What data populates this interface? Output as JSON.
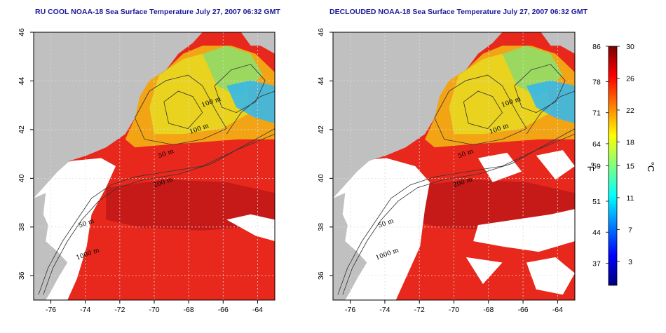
{
  "panels": [
    {
      "id": "left",
      "title": "RU COOL NOAA-18 Sea Surface Temperature July 27, 2007 06:32 GMT",
      "decloud": false
    },
    {
      "id": "right",
      "title": "DECLOUDED NOAA-18 Sea Surface Temperature July 27, 2007 06:32 GMT",
      "decloud": true
    }
  ],
  "map": {
    "lon_range": [
      -77,
      -63
    ],
    "lat_range": [
      35,
      46
    ],
    "x_ticks": [
      "-76",
      "-74",
      "-72",
      "-70",
      "-68",
      "-66",
      "-64"
    ],
    "y_ticks": [
      "36",
      "38",
      "40",
      "42",
      "44",
      "46"
    ],
    "contour_labels": [
      "100 m",
      "100 m",
      "50 m",
      "200 m",
      "50 m",
      "1000 m"
    ]
  },
  "colorbar": {
    "fahrenheit_ticks": [
      "86",
      "78",
      "71",
      "64",
      "59",
      "51",
      "44",
      "37"
    ],
    "celsius_ticks": [
      "30",
      "26",
      "22",
      "18",
      "15",
      "11",
      "7",
      "3"
    ],
    "fahrenheit_unit": "°F",
    "celsius_unit": "°C",
    "colors": [
      "#00007f",
      "#0000ff",
      "#007fff",
      "#00ffff",
      "#7fff7f",
      "#ffff00",
      "#ff7f00",
      "#ff0000",
      "#7f0000"
    ]
  },
  "colors": {
    "land": "#c0c0c0",
    "cloud": "#ffffff",
    "warm": "#e8281c",
    "gulf_core": "#c01818",
    "shelf_warm": "#f2a414",
    "shelf_mid": "#e8d820",
    "shelf_cool": "#9ad860",
    "cold": "#38b8e8",
    "title": "#1a1a9a"
  }
}
